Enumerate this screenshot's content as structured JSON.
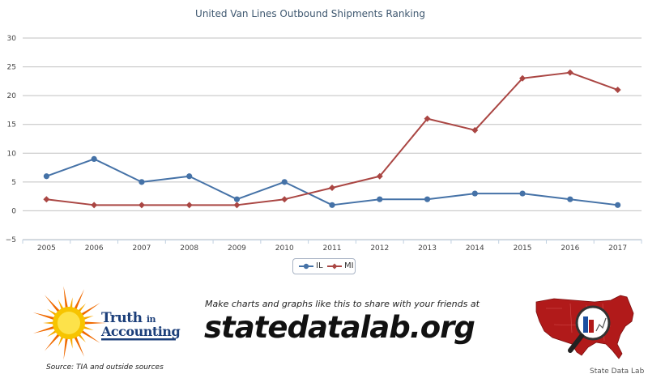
{
  "chart_data": {
    "type": "line",
    "title": "United Van Lines Outbound Shipments Ranking",
    "x": [
      "2005",
      "2006",
      "2007",
      "2008",
      "2009",
      "2010",
      "2011",
      "2012",
      "2013",
      "2014",
      "2015",
      "2016",
      "2017"
    ],
    "ylim": [
      -5,
      30
    ],
    "yticks": [
      -5,
      0,
      5,
      10,
      15,
      20,
      25,
      30
    ],
    "grid": true,
    "legend": "bottom-center",
    "series": [
      {
        "name": "IL",
        "color": "#4572a7",
        "marker": "circle",
        "values": [
          6,
          9,
          5,
          6,
          2,
          5,
          1,
          2,
          2,
          3,
          3,
          2,
          1
        ]
      },
      {
        "name": "MI",
        "color": "#aa4643",
        "marker": "diamond",
        "values": [
          2,
          1,
          1,
          1,
          1,
          2,
          4,
          6,
          16,
          14,
          23,
          24,
          21
        ]
      }
    ]
  },
  "banner": {
    "tia_name_1": "Truth",
    "tia_name_in": "in",
    "tia_name_2": "Accounting",
    "tia_source": "Source: TIA and outside sources",
    "cta": "Make charts and graphs like this to share with your friends at",
    "site": "statedatalab.org",
    "sdl_caption": "State Data Lab"
  },
  "colors": {
    "sun": "#f7b500",
    "sun_rays": "#f06a00",
    "map": "#b11a1a",
    "tia_blue": "#1c3f7a"
  },
  "icons": {
    "tia_logo": "sun-icon",
    "sdl_logo": "usa-map-magnifier-icon"
  }
}
